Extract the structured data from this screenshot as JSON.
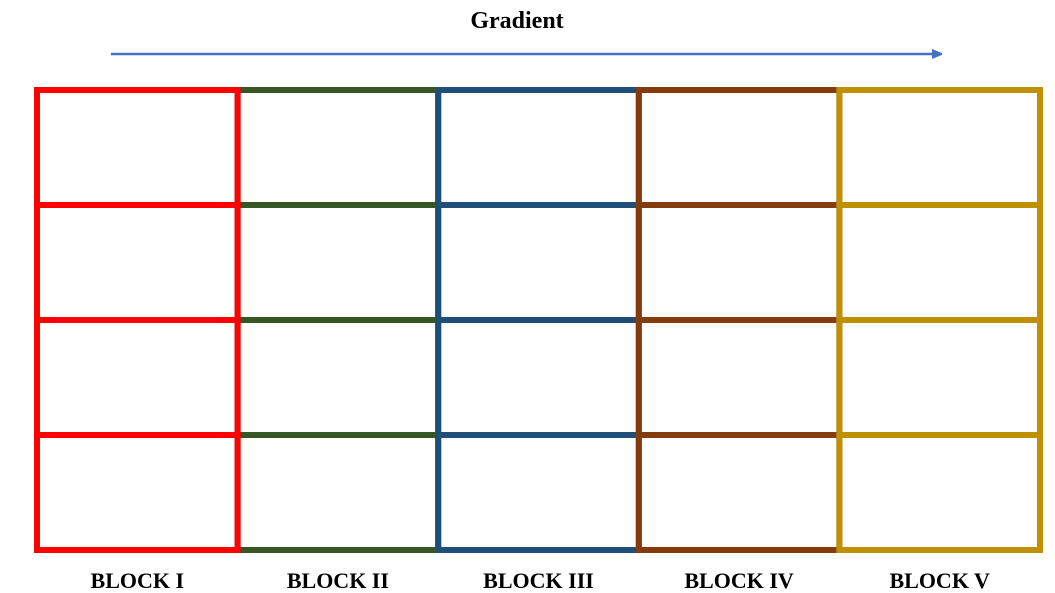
{
  "title": "Gradient",
  "arrow": {
    "color": "#4472c4",
    "direction": "right",
    "icon": "arrow-right-icon"
  },
  "grid": {
    "rows": 4
  },
  "blocks": [
    {
      "label": "BLOCK I",
      "color": "#ff0000"
    },
    {
      "label": "BLOCK II",
      "color": "#375623"
    },
    {
      "label": "BLOCK III",
      "color": "#1f4e79"
    },
    {
      "label": "BLOCK IV",
      "color": "#843c0c"
    },
    {
      "label": "BLOCK V",
      "color": "#bf9000"
    }
  ]
}
